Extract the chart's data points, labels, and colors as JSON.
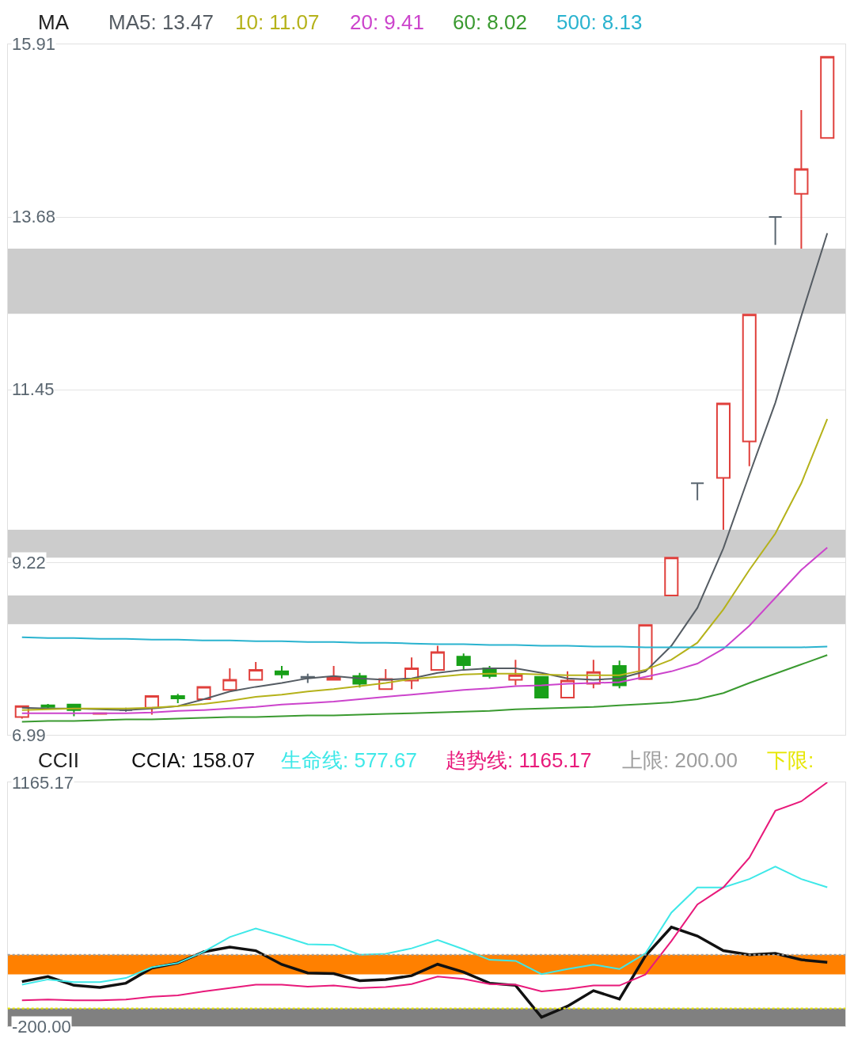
{
  "chart_data": [
    {
      "type": "candlestick",
      "title": "MA",
      "legend": "top left",
      "grid": "y",
      "tick_labels": "y",
      "categories": [
        null,
        null,
        null,
        null,
        null,
        null,
        null,
        null,
        null,
        null,
        null,
        null,
        null,
        null,
        null,
        null,
        null,
        null,
        null,
        null,
        null,
        null,
        null,
        null,
        null,
        null,
        null,
        null,
        null,
        null,
        null,
        null
      ],
      "ohlc": [
        [
          7.22,
          7.37,
          7.2,
          7.36
        ],
        [
          7.37,
          7.39,
          7.33,
          7.35
        ],
        [
          7.38,
          7.39,
          7.23,
          7.31
        ],
        [
          7.26,
          7.28,
          7.26,
          7.27
        ],
        [
          7.31,
          7.34,
          7.29,
          7.31
        ],
        [
          7.34,
          7.49,
          7.25,
          7.49
        ],
        [
          7.49,
          7.52,
          7.4,
          7.46
        ],
        [
          7.45,
          7.62,
          7.45,
          7.61
        ],
        [
          7.57,
          7.85,
          7.57,
          7.7
        ],
        [
          7.7,
          7.93,
          7.7,
          7.83
        ],
        [
          7.81,
          7.88,
          7.72,
          7.77
        ],
        [
          7.73,
          7.78,
          7.66,
          7.74
        ],
        [
          7.7,
          7.88,
          7.7,
          7.73
        ],
        [
          7.75,
          7.79,
          7.6,
          7.65
        ],
        [
          7.58,
          7.84,
          7.58,
          7.71
        ],
        [
          7.69,
          7.99,
          7.58,
          7.85
        ],
        [
          7.83,
          8.14,
          7.83,
          8.06
        ],
        [
          8.0,
          8.04,
          7.83,
          7.89
        ],
        [
          7.85,
          7.88,
          7.72,
          7.75
        ],
        [
          7.7,
          7.96,
          7.63,
          7.76
        ],
        [
          7.74,
          7.74,
          7.46,
          7.47
        ],
        [
          7.47,
          7.81,
          7.47,
          7.69
        ],
        [
          7.65,
          7.96,
          7.59,
          7.8
        ],
        [
          7.88,
          7.95,
          7.59,
          7.63
        ],
        [
          7.71,
          8.41,
          7.71,
          8.41
        ],
        [
          8.79,
          9.28,
          8.79,
          9.28
        ],
        [
          10.24,
          10.24,
          10.02,
          10.24
        ],
        [
          10.31,
          11.27,
          9.64,
          11.27
        ],
        [
          10.78,
          12.42,
          10.46,
          12.42
        ],
        [
          13.68,
          13.68,
          13.32,
          13.68
        ],
        [
          13.98,
          15.06,
          13.27,
          14.3
        ],
        [
          14.7,
          15.75,
          14.7,
          15.75
        ]
      ],
      "colors": [
        "#e0403c",
        "#18a018",
        "#18a018",
        "#e0403c",
        "#5a6670",
        "#e0403c",
        "#18a018",
        "#e0403c",
        "#e0403c",
        "#e0403c",
        "#18a018",
        "#5a6670",
        "#e0403c",
        "#18a018",
        "#e0403c",
        "#e0403c",
        "#e0403c",
        "#18a018",
        "#18a018",
        "#e0403c",
        "#18a018",
        "#e0403c",
        "#e0403c",
        "#18a018",
        "#e0403c",
        "#e0403c",
        "#5a6670",
        "#e0403c",
        "#e0403c",
        "#5a6670",
        "#e0403c",
        "#e0403c"
      ],
      "series": [
        {
          "name": "MA5: 13.47",
          "type": "line",
          "color": "#555c63",
          "values": [
            7.34,
            7.33,
            7.33,
            7.32,
            7.31,
            7.33,
            7.36,
            7.45,
            7.55,
            7.61,
            7.66,
            7.72,
            7.75,
            7.72,
            7.7,
            7.72,
            7.79,
            7.83,
            7.85,
            7.85,
            7.79,
            7.72,
            7.7,
            7.72,
            7.81,
            8.14,
            8.63,
            9.4,
            10.35,
            11.28,
            12.4,
            13.47
          ]
        },
        {
          "name": "10: 11.07",
          "type": "line",
          "color": "#b5b21a",
          "values": [
            7.31,
            7.32,
            7.33,
            7.33,
            7.33,
            7.34,
            7.36,
            7.39,
            7.43,
            7.48,
            7.51,
            7.55,
            7.58,
            7.62,
            7.66,
            7.71,
            7.74,
            7.77,
            7.78,
            7.78,
            7.77,
            7.76,
            7.76,
            7.76,
            7.83,
            7.96,
            8.18,
            8.61,
            9.12,
            9.59,
            10.24,
            11.07
          ]
        },
        {
          "name": "20: 9.41",
          "type": "line",
          "color": "#cc44cc",
          "values": [
            7.27,
            7.27,
            7.27,
            7.27,
            7.27,
            7.28,
            7.3,
            7.31,
            7.33,
            7.35,
            7.38,
            7.4,
            7.42,
            7.45,
            7.48,
            7.51,
            7.54,
            7.57,
            7.59,
            7.62,
            7.63,
            7.65,
            7.66,
            7.67,
            7.74,
            7.81,
            7.91,
            8.1,
            8.4,
            8.76,
            9.12,
            9.41
          ]
        },
        {
          "name": "60: 8.02",
          "type": "line",
          "color": "#3a9a30",
          "values": [
            7.16,
            7.17,
            7.17,
            7.18,
            7.19,
            7.19,
            7.2,
            7.21,
            7.22,
            7.22,
            7.23,
            7.24,
            7.24,
            7.25,
            7.26,
            7.27,
            7.28,
            7.29,
            7.3,
            7.32,
            7.33,
            7.34,
            7.35,
            7.37,
            7.39,
            7.41,
            7.45,
            7.53,
            7.66,
            7.78,
            7.9,
            8.02
          ]
        },
        {
          "name": "500: 8.13",
          "type": "line",
          "color": "#2ab3cf",
          "values": [
            8.25,
            8.24,
            8.24,
            8.23,
            8.23,
            8.22,
            8.22,
            8.21,
            8.21,
            8.2,
            8.2,
            8.19,
            8.19,
            8.18,
            8.18,
            8.17,
            8.16,
            8.16,
            8.15,
            8.15,
            8.14,
            8.14,
            8.13,
            8.13,
            8.12,
            8.12,
            8.12,
            8.12,
            8.12,
            8.12,
            8.12,
            8.13
          ]
        }
      ],
      "ylim": [
        6.99,
        15.91
      ],
      "yticks": [
        15.91,
        13.68,
        11.45,
        9.22,
        6.99
      ],
      "bands": [
        {
          "axis": "y",
          "from": 12.43,
          "to": 13.27,
          "color": "#cccccc"
        },
        {
          "axis": "y",
          "from": 9.28,
          "to": 9.64,
          "color": "#cccccc"
        },
        {
          "axis": "y",
          "from": 8.42,
          "to": 8.79,
          "color": "#cccccc"
        }
      ]
    },
    {
      "type": "line",
      "title": "CCII",
      "legend": "top",
      "tick_labels": "y",
      "categories": [
        null,
        null,
        null,
        null,
        null,
        null,
        null,
        null,
        null,
        null,
        null,
        null,
        null,
        null,
        null,
        null,
        null,
        null,
        null,
        null,
        null,
        null,
        null,
        null,
        null,
        null,
        null,
        null,
        null,
        null,
        null,
        null
      ],
      "series": [
        {
          "name": "CCIA: 158.07",
          "color": "#111111",
          "values": [
            50,
            78,
            29,
            17,
            41,
            126,
            154,
            217,
            243,
            223,
            146,
            98,
            95,
            55,
            62,
            83,
            147,
            103,
            41,
            29,
            -150,
            -88,
            -1,
            -48,
            194,
            355,
            305,
            223,
            200,
            208,
            172,
            158
          ]
        },
        {
          "name": "生命线: 577.67",
          "color": "#3ee8e8",
          "values": [
            33,
            62,
            47,
            47,
            70,
            130,
            154,
            217,
            299,
            347,
            305,
            259,
            255,
            200,
            206,
            236,
            283,
            231,
            172,
            166,
            92,
            120,
            145,
            120,
            208,
            436,
            577,
            577,
            624,
            694,
            624,
            578
          ]
        },
        {
          "name": "趋势线: 1165.17",
          "color": "#e8197a",
          "values": [
            -55,
            -50,
            -55,
            -55,
            -50,
            -35,
            -27,
            -5,
            14,
            33,
            33,
            22,
            28,
            14,
            19,
            36,
            78,
            65,
            36,
            33,
            -5,
            8,
            28,
            28,
            90,
            277,
            482,
            577,
            743,
            1006,
            1059,
            1165
          ]
        }
      ],
      "ylim": [
        -200,
        1165.17
      ],
      "yticks": [
        1165.17,
        {
          "value": -200,
          "label": "-200.00"
        }
      ],
      "bands": [
        {
          "axis": "y",
          "from": 90,
          "to": 200,
          "color": "#ff8000"
        },
        {
          "axis": "y",
          "from": -200,
          "to": -100,
          "color": "#808080"
        }
      ],
      "ref_lines": [
        {
          "axis": "y",
          "value": 200,
          "label": "上限: 200.00",
          "color": "#9e9e9e",
          "line_style": "dotted"
        },
        {
          "axis": "y",
          "value": -100,
          "label": "下限:",
          "color": "#e6e600",
          "line_style": "dotted"
        }
      ]
    }
  ]
}
